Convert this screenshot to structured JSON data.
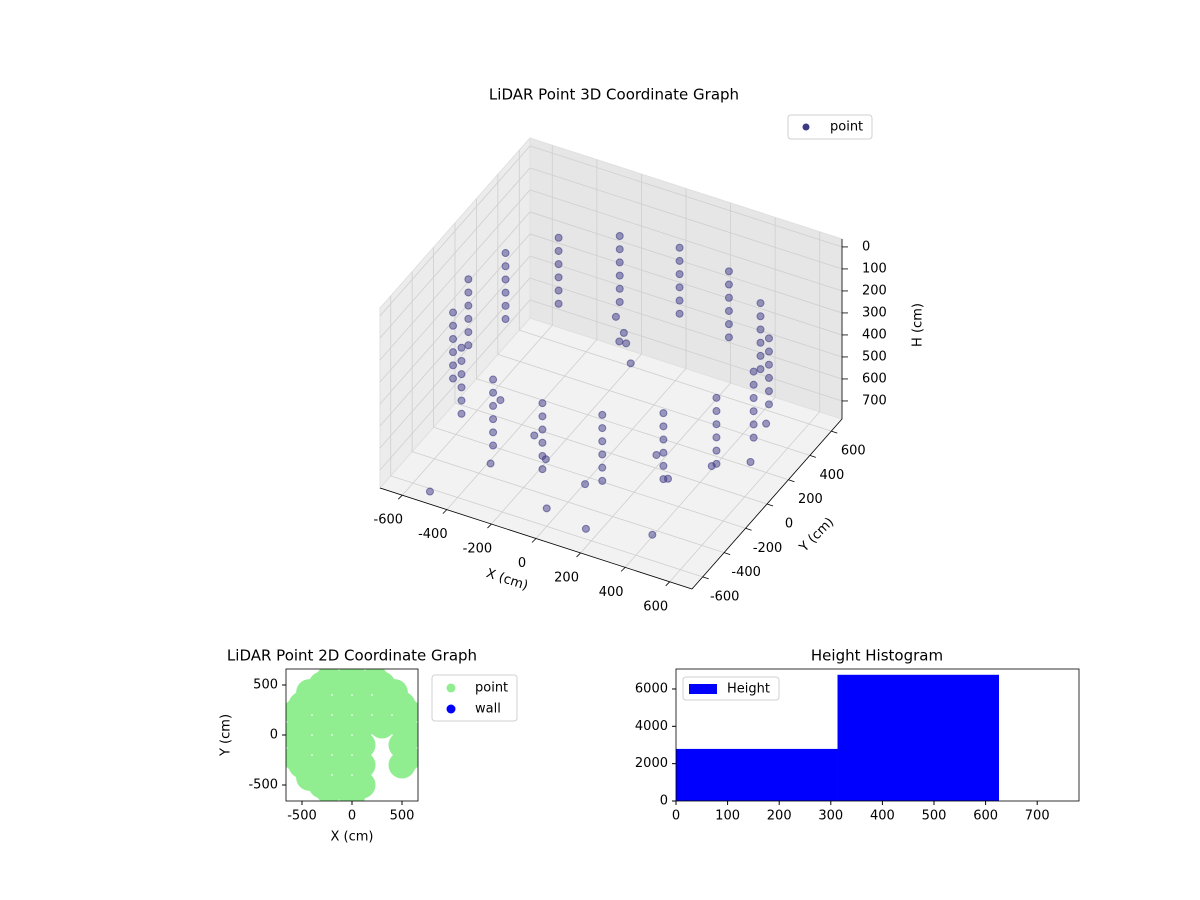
{
  "chart_data": [
    {
      "type": "scatter3d",
      "title": "LiDAR Point 3D Coordinate Graph",
      "xlabel": "X (cm)",
      "ylabel": "Y (cm)",
      "zlabel": "H (cm)",
      "xlim": [
        -700,
        700
      ],
      "ylim": [
        -700,
        700
      ],
      "zlim": [
        782,
        -36
      ],
      "xticks": [
        -600,
        -400,
        -200,
        0,
        200,
        400,
        600
      ],
      "yticks": [
        -600,
        -400,
        -200,
        0,
        200,
        400,
        600
      ],
      "zticks": [
        0,
        100,
        200,
        300,
        400,
        500,
        600,
        700
      ],
      "grid": true,
      "series": [
        {
          "name": "point",
          "color": "#3d3a85",
          "x": [
            640,
            591,
            453,
            245,
            0,
            -245,
            -453,
            -591,
            -640,
            -591,
            -453,
            -245,
            0,
            245,
            453,
            591,
            640,
            591,
            453,
            245,
            0,
            -245,
            -453,
            -591,
            -640,
            -591,
            -453,
            -245,
            0,
            245,
            453,
            591,
            640,
            591,
            453,
            245,
            0,
            -245,
            -453,
            -591,
            -640,
            -591,
            -453,
            -245,
            0,
            245,
            453,
            591,
            640,
            591,
            453,
            245,
            0,
            -245,
            -453,
            -591,
            -640,
            -591,
            -453,
            -245,
            0,
            245,
            453,
            591,
            640,
            591,
            453,
            245,
            0,
            -245,
            -453,
            -591,
            -640,
            -591,
            -453,
            -245,
            0,
            245,
            453,
            591,
            640,
            591,
            453,
            245,
            0,
            -245,
            -453,
            -591,
            -640,
            -591,
            -453,
            -245,
            0,
            245,
            453,
            591,
            -300,
            0,
            200,
            400,
            -200,
            100,
            500,
            600,
            300,
            -100,
            -400,
            450,
            650,
            -500,
            -50,
            0,
            20,
            -30,
            50
          ],
          "y": [
            0,
            245,
            453,
            591,
            640,
            591,
            453,
            245,
            0,
            -245,
            -453,
            -591,
            -640,
            -591,
            -453,
            -245,
            0,
            245,
            453,
            591,
            640,
            591,
            453,
            245,
            0,
            -245,
            -453,
            -591,
            -640,
            -591,
            -453,
            -245,
            0,
            245,
            453,
            591,
            640,
            591,
            453,
            245,
            0,
            -245,
            -453,
            -591,
            -640,
            -591,
            -453,
            -245,
            0,
            245,
            453,
            591,
            640,
            591,
            453,
            245,
            0,
            -245,
            -453,
            -591,
            -640,
            -591,
            -453,
            -245,
            0,
            245,
            453,
            591,
            640,
            591,
            453,
            245,
            0,
            -245,
            -453,
            -591,
            -640,
            -591,
            -453,
            -245,
            0,
            245,
            453,
            591,
            640,
            591,
            453,
            245,
            0,
            -245,
            -453,
            -591,
            -640,
            -591,
            -453,
            -245,
            -500,
            -600,
            -650,
            -300,
            -300,
            -450,
            -100,
            200,
            -200,
            -400,
            -200,
            -550,
            -50,
            -650,
            150,
            120,
            100,
            140,
            80
          ],
          "z": [
            200,
            200,
            200,
            200,
            200,
            200,
            200,
            200,
            200,
            200,
            200,
            200,
            200,
            200,
            200,
            200,
            260,
            260,
            260,
            260,
            260,
            260,
            260,
            260,
            260,
            260,
            260,
            260,
            260,
            260,
            260,
            260,
            320,
            320,
            320,
            320,
            320,
            320,
            320,
            320,
            320,
            320,
            320,
            320,
            320,
            320,
            320,
            320,
            380,
            380,
            380,
            380,
            380,
            380,
            380,
            380,
            380,
            380,
            380,
            380,
            380,
            380,
            380,
            380,
            440,
            440,
            440,
            440,
            440,
            440,
            440,
            440,
            440,
            440,
            440,
            440,
            440,
            440,
            440,
            440,
            500,
            500,
            500,
            500,
            500,
            500,
            500,
            500,
            500,
            500,
            500,
            500,
            500,
            500,
            500,
            500,
            650,
            700,
            700,
            600,
            600,
            640,
            620,
            560,
            580,
            620,
            560,
            700,
            580,
            760,
            260,
            300,
            330,
            360,
            400
          ]
        }
      ]
    },
    {
      "type": "scatter",
      "title": "LiDAR Point 2D Coordinate Graph",
      "xlabel": "X (cm)",
      "ylabel": "Y (cm)",
      "xlim": [
        -660,
        660
      ],
      "ylim": [
        -660,
        660
      ],
      "xticks": [
        -500,
        0,
        500
      ],
      "yticks": [
        -500,
        0,
        500
      ],
      "series": [
        {
          "name": "point",
          "color": "#90ee90",
          "x": [
            -300,
            -100,
            100,
            300,
            -500,
            -300,
            -100,
            100,
            300,
            500,
            -500,
            -300,
            -100,
            100,
            300,
            500,
            -500,
            -300,
            -100,
            100,
            500,
            -500,
            -300,
            -100,
            100,
            500,
            -300,
            -100,
            100,
            600,
            554,
            424,
            230,
            0,
            -230,
            -424,
            -554,
            -600,
            -554,
            -424,
            -230,
            0,
            554
          ],
          "y": [
            500,
            500,
            500,
            500,
            300,
            300,
            300,
            300,
            300,
            300,
            100,
            100,
            100,
            100,
            100,
            100,
            -100,
            -100,
            -100,
            -100,
            -100,
            -300,
            -300,
            -300,
            -300,
            -300,
            -500,
            -500,
            -500,
            0,
            230,
            424,
            554,
            600,
            554,
            424,
            230,
            0,
            -230,
            -424,
            -554,
            -600,
            -230
          ]
        },
        {
          "name": "wall",
          "color": "#0000ff",
          "x": [],
          "y": []
        }
      ]
    },
    {
      "type": "histogram",
      "title": "Height Histogram",
      "bins": [
        0,
        313,
        626
      ],
      "counts": [
        2790,
        6760
      ],
      "series_name": "Height",
      "color": "#0000ff",
      "xlim": [
        0,
        781
      ],
      "ylim": [
        0,
        7070
      ],
      "xticks": [
        0,
        100,
        200,
        300,
        400,
        500,
        600,
        700
      ],
      "yticks": [
        0,
        2000,
        4000,
        6000
      ]
    }
  ]
}
